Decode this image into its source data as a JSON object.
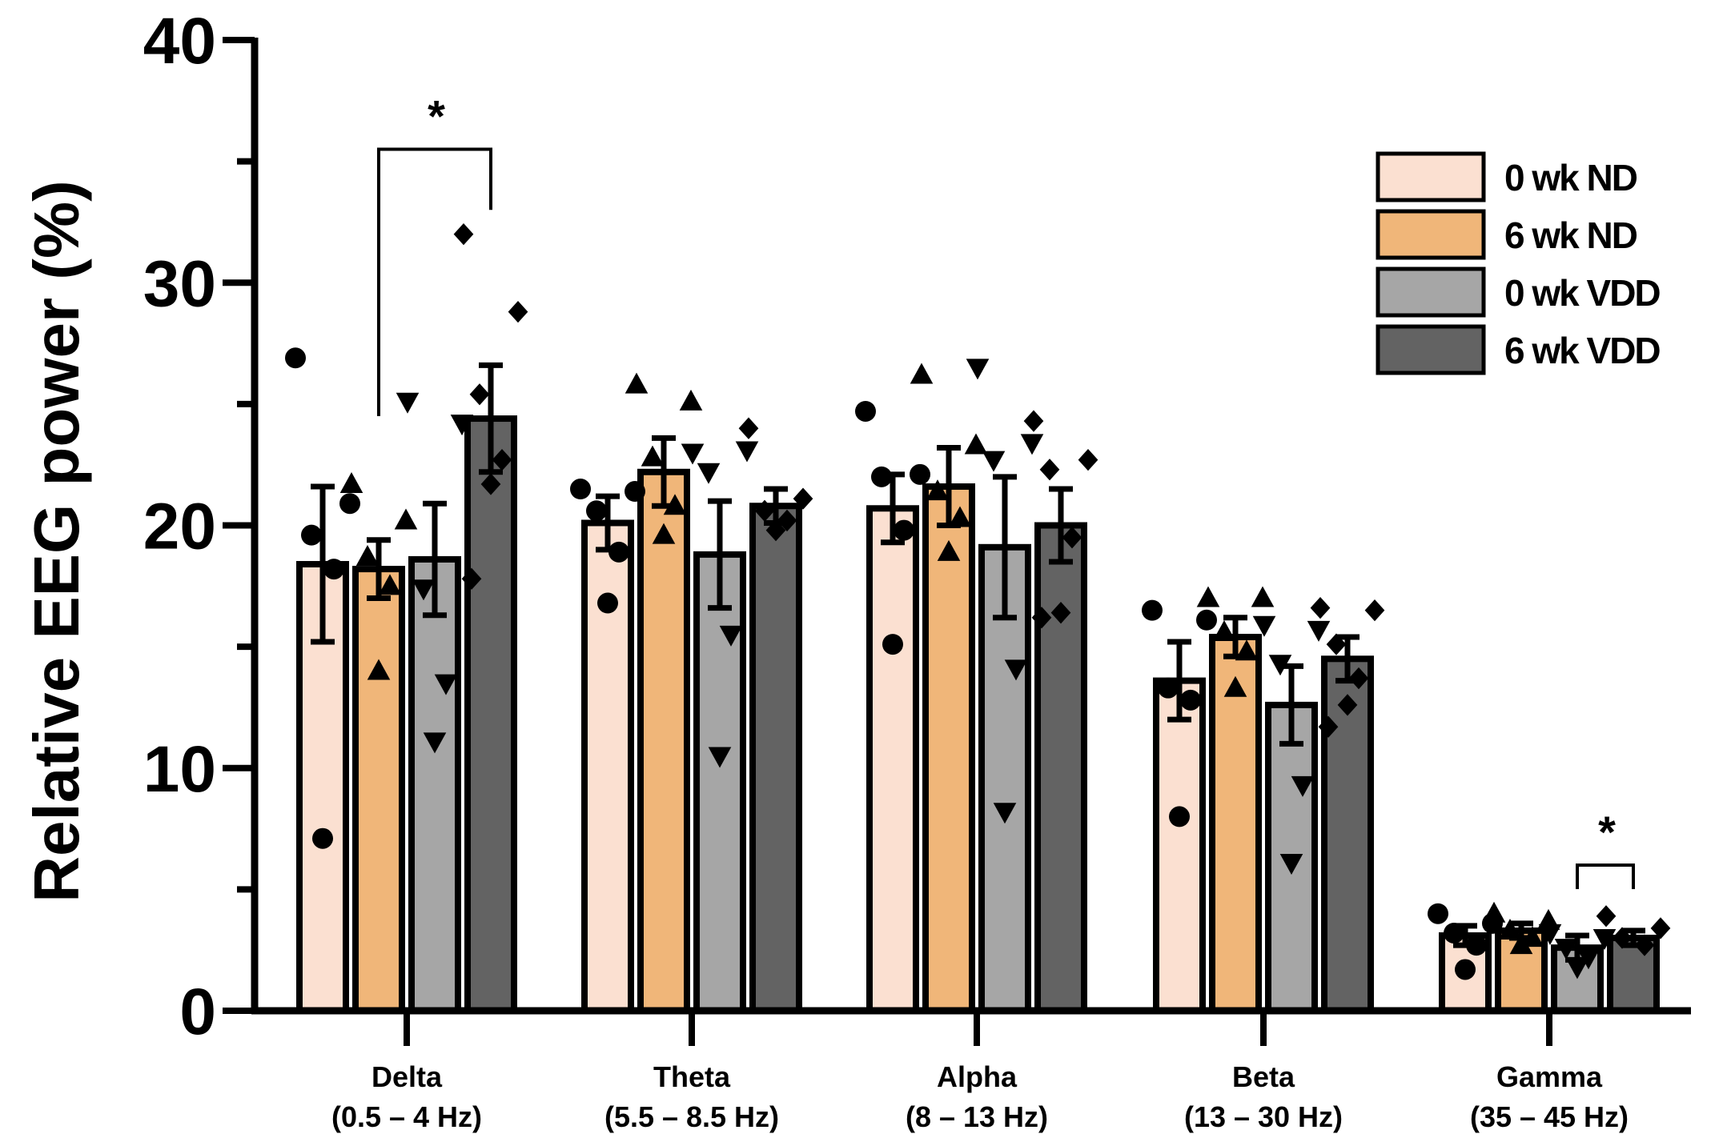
{
  "chart_data": {
    "type": "bar",
    "title": "",
    "xlabel": "",
    "ylabel": "Relative EEG power (%)",
    "ylim": [
      0,
      40
    ],
    "yticks": [
      0,
      10,
      20,
      30,
      40
    ],
    "categories": [
      {
        "name": "Delta",
        "range": "(0.5 – 4 Hz)"
      },
      {
        "name": "Theta",
        "range": "(5.5 – 8.5 Hz)"
      },
      {
        "name": "Alpha",
        "range": "(8 – 13 Hz)"
      },
      {
        "name": "Beta",
        "range": "(13 – 30 Hz)"
      },
      {
        "name": "Gamma",
        "range": "(35 – 45 Hz)"
      }
    ],
    "legend_position": "top-right",
    "series": [
      {
        "name": "0 wk ND",
        "color": "#fbe0d1",
        "marker": "circle",
        "values": [
          18.4,
          20.1,
          20.7,
          13.6,
          3.1
        ],
        "errors": [
          3.2,
          1.1,
          1.4,
          1.6,
          0.4
        ],
        "points": [
          [
            26.9,
            20.9,
            19.6,
            18.2,
            7.1
          ],
          [
            21.5,
            21.4,
            20.6,
            18.9,
            16.8
          ],
          [
            24.7,
            22.1,
            22.0,
            19.8,
            15.1
          ],
          [
            16.5,
            16.1,
            13.3,
            12.8,
            8.0
          ],
          [
            4.0,
            3.6,
            3.2,
            2.7,
            1.7
          ]
        ]
      },
      {
        "name": "6 wk ND",
        "color": "#f0b679",
        "marker": "triangle-up",
        "values": [
          18.2,
          22.2,
          21.6,
          15.4,
          3.3
        ],
        "errors": [
          1.2,
          1.4,
          1.6,
          0.8,
          0.3
        ],
        "points": [
          [
            21.7,
            20.2,
            18.7,
            17.5,
            14.0
          ],
          [
            25.8,
            25.1,
            22.8,
            20.8,
            19.6
          ],
          [
            26.2,
            23.3,
            21.4,
            20.3,
            18.9
          ],
          [
            17.0,
            17.0,
            15.6,
            14.8,
            13.3
          ],
          [
            4.0,
            3.7,
            3.3,
            3.0,
            2.7
          ]
        ]
      },
      {
        "name": "0 wk VDD",
        "color": "#a6a6a6",
        "marker": "triangle-down",
        "values": [
          18.6,
          18.8,
          19.1,
          12.6,
          2.6
        ],
        "errors": [
          2.3,
          2.2,
          2.9,
          1.6,
          0.5
        ],
        "points": [
          [
            25.1,
            24.2,
            17.4,
            13.5,
            11.1
          ],
          [
            23.0,
            23.1,
            22.2,
            15.5,
            10.5
          ],
          [
            26.5,
            23.4,
            22.7,
            14.1,
            8.2
          ],
          [
            15.9,
            15.7,
            14.3,
            9.3,
            6.1
          ],
          [
            3.2,
            3.0,
            2.6,
            2.2,
            1.8
          ]
        ]
      },
      {
        "name": "6 wk VDD",
        "color": "#636363",
        "marker": "diamond",
        "values": [
          24.4,
          20.8,
          20.0,
          14.5,
          3.0
        ],
        "errors": [
          2.2,
          0.7,
          1.5,
          0.9,
          0.3
        ],
        "points": [
          [
            32.0,
            28.8,
            25.4,
            22.7,
            21.7,
            17.8
          ],
          [
            24.0,
            21.1,
            20.6,
            20.2,
            19.8
          ],
          [
            24.3,
            22.7,
            22.3,
            19.5,
            16.4,
            16.2
          ],
          [
            16.6,
            16.5,
            15.1,
            13.7,
            12.6,
            11.7
          ],
          [
            3.9,
            3.4,
            3.0,
            2.7
          ]
        ]
      }
    ],
    "significance": [
      {
        "category": 0,
        "from_series": 1,
        "to_series": 3,
        "y": 35.5,
        "label": "*"
      },
      {
        "category": 4,
        "from_series": 2,
        "to_series": 3,
        "y": 6.0,
        "label": "*"
      }
    ]
  }
}
